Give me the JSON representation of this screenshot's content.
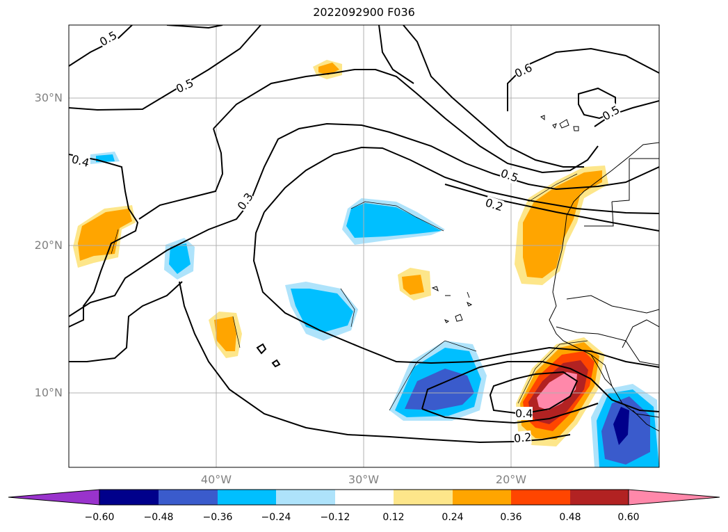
{
  "title": "2022092900 F036",
  "map": {
    "lat_labels": [
      "30°N",
      "20°N",
      "10°N"
    ],
    "lon_labels": [
      "40°W",
      "30°W",
      "20°W"
    ],
    "contour_labels": [
      "0.5",
      "0.5",
      "0.6",
      "0.5",
      "0.4",
      "0.3",
      "0.5",
      "0.2",
      "0.4",
      "0.2"
    ],
    "extent": {
      "lon": [
        -50,
        -10
      ],
      "lat": [
        5,
        35
      ]
    }
  },
  "colorbar": {
    "ticks": [
      "−0.60",
      "−0.48",
      "−0.36",
      "−0.24",
      "−0.12",
      "0.12",
      "0.24",
      "0.36",
      "0.48",
      "0.60"
    ],
    "colors": [
      "#9933cc",
      "#00008b",
      "#3a5bcc",
      "#00bfff",
      "#aee3fb",
      "#ffffff",
      "#fde68a",
      "#ffa500",
      "#ff4500",
      "#b22222",
      "#ff88aa"
    ]
  }
}
